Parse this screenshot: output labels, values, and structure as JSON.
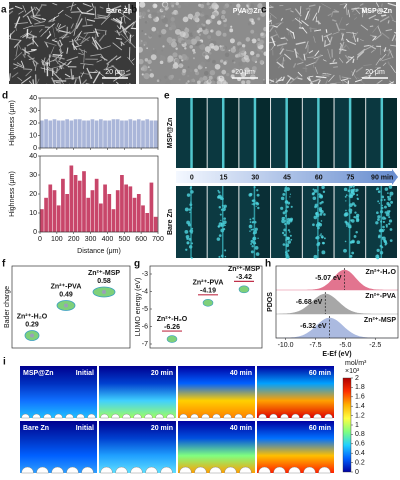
{
  "sem": [
    {
      "letter": "a",
      "name": "Bare Zn",
      "scale_bar": "20 μm"
    },
    {
      "letter": "b",
      "name": "PVA@Zn",
      "scale_bar": "20 μm"
    },
    {
      "letter": "c",
      "name": "MSP@Zn",
      "scale_bar": "20 μm"
    }
  ],
  "profile": {
    "letter": "d",
    "y_label": "Highness (μm)",
    "x_label": "Distance (μm)",
    "xlim": [
      0,
      700
    ],
    "xticks": [
      0,
      100,
      200,
      300,
      400,
      500,
      600,
      700
    ],
    "x": [
      12.5,
      37.5,
      62.5,
      87.5,
      112.5,
      137.5,
      162.5,
      187.5,
      212.5,
      237.5,
      262.5,
      287.5,
      312.5,
      337.5,
      362.5,
      387.5,
      412.5,
      437.5,
      462.5,
      487.5,
      512.5,
      537.5,
      562.5,
      587.5,
      612.5,
      637.5,
      662.5,
      687.5
    ],
    "plots": [
      {
        "color": "#aab6d9",
        "ylim": [
          0,
          40
        ],
        "yticks": [
          0,
          10,
          20,
          30,
          40
        ],
        "values": [
          22,
          23,
          22,
          23,
          22,
          22,
          23,
          22,
          23,
          23,
          22,
          22,
          23,
          22,
          23,
          22,
          22,
          23,
          23,
          22,
          22,
          23,
          22,
          23,
          22,
          23,
          22,
          22
        ]
      },
      {
        "color": "#c8466a",
        "ylim": [
          0,
          40
        ],
        "yticks": [
          0,
          10,
          20,
          30,
          40
        ],
        "values": [
          12,
          18,
          25,
          22,
          14,
          28,
          20,
          35,
          30,
          27,
          32,
          18,
          22,
          28,
          15,
          25,
          20,
          12,
          22,
          30,
          25,
          24,
          18,
          20,
          14,
          10,
          26,
          8
        ]
      }
    ]
  },
  "timelapse": {
    "letter": "e",
    "rows": [
      "MSP@Zn",
      "Bare Zn"
    ],
    "times": [
      "0",
      "15",
      "30",
      "45",
      "60",
      "75",
      "90 min"
    ]
  },
  "bader": {
    "letter": "f",
    "y_label": "Bader charge",
    "items": [
      {
        "name": "Zn²⁺-H₂O",
        "value": 0.29
      },
      {
        "name": "Zn²⁺-PVA",
        "value": 0.49
      },
      {
        "name": "Zn²⁺-MSP",
        "value": 0.58
      }
    ]
  },
  "lumo": {
    "letter": "g",
    "y_label": "LUMO energy (eV)",
    "ylim": [
      -7,
      -3
    ],
    "yticks": [
      -7,
      -6,
      -5,
      -4,
      -3
    ],
    "items": [
      {
        "name": "Zn²⁺-H₂O",
        "value": -6.26
      },
      {
        "name": "Zn²⁺-PVA",
        "value": -4.19
      },
      {
        "name": "Zn²⁺-MSP",
        "value": -3.42
      }
    ]
  },
  "pdos": {
    "letter": "h",
    "y_label": "PDOS",
    "x_label": "E-Ef (eV)",
    "xlim": [
      -10.8,
      -0.6
    ],
    "xticks": [
      {
        "value": -10,
        "label": "-10.0"
      },
      -7.5,
      {
        "value": -5,
        "label": "-5.0"
      },
      -2.5
    ],
    "series": [
      {
        "name": "Zn²⁺-H₂O",
        "color": "#d9466a",
        "peak": -5.07,
        "peak_label": "-5.07 eV"
      },
      {
        "name": "Zn²⁺-PVA",
        "color": "#8a8a8a",
        "peak": -6.68,
        "peak_label": "-6.68 eV"
      },
      {
        "name": "Zn²⁺-MSP",
        "color": "#8fa3d6",
        "peak": -6.32,
        "peak_label": "-6.32 eV"
      }
    ]
  },
  "concentration": {
    "letter": "i",
    "rows": [
      "MSP@Zn",
      "Bare Zn"
    ],
    "times": [
      "Initial",
      "20 min",
      "40 min",
      "60 min"
    ],
    "unit": "mol/m³",
    "multiplier": "×10³",
    "clim": [
      0,
      2
    ],
    "ticks": [
      0,
      0.2,
      0.4,
      0.6,
      0.8,
      1,
      1.2,
      1.4,
      1.6,
      1.8,
      2
    ]
  }
}
